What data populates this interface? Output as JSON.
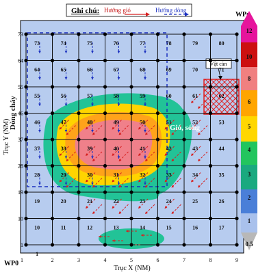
{
  "legend": {
    "title": "Ghi chú:",
    "wind_label": "Hướng gió",
    "current_label": "Hướng dòng",
    "wind_color": "#d62020",
    "current_color": "#1a2fbf"
  },
  "axes": {
    "x_label": "Trục X (NM)",
    "y_label": "Trục Y (NM)",
    "x_ticks": [
      "1",
      "2",
      "3",
      "4",
      "5",
      "6",
      "7",
      "8",
      "9"
    ],
    "y_ticks": [
      "1",
      "10",
      "19",
      "28",
      "37",
      "46",
      "55",
      "64",
      "73"
    ],
    "origin_label": "WP0"
  },
  "grid": {
    "rows": [
      [
        "73",
        "74",
        "75",
        "76",
        "77",
        "78",
        "79",
        "80",
        "81"
      ],
      [
        "64",
        "65",
        "66",
        "67",
        "68",
        "69",
        "70",
        "71",
        "72"
      ],
      [
        "55",
        "56",
        "57",
        "58",
        "59",
        "60",
        "61",
        "62",
        "63"
      ],
      [
        "46",
        "47",
        "48",
        "49",
        "50",
        "51",
        "52",
        "53",
        "54"
      ],
      [
        "37",
        "38",
        "39",
        "40",
        "41",
        "42",
        "43",
        "44",
        "45"
      ],
      [
        "28",
        "29",
        "30",
        "31",
        "32",
        "33",
        "34",
        "35",
        "36"
      ],
      [
        "19",
        "20",
        "21",
        "22",
        "23",
        "24",
        "25",
        "26",
        "27"
      ],
      [
        "10",
        "11",
        "12",
        "13",
        "14",
        "15",
        "16",
        "17",
        "18"
      ],
      [
        "1",
        "",
        "",
        "",
        "",
        "",
        "",
        "",
        ""
      ]
    ]
  },
  "annotations": {
    "current_region": "Dòng chảy",
    "wave_region": "Gió, sóng",
    "obstacle": "Vật cản",
    "wp_end": "WPg"
  },
  "colorbar": {
    "labels": [
      "12",
      "10",
      "8",
      "6",
      "5",
      "4",
      "3",
      "2",
      "1",
      "0.5"
    ],
    "colors": [
      "#e6159c",
      "#cc1010",
      "#f08080",
      "#ffa500",
      "#ffd700",
      "#22c55e",
      "#1aa97f",
      "#4a7fd8",
      "#a9c1ec",
      "#b8b8b8"
    ]
  },
  "colors": {
    "background": "#b7ccef",
    "grid_line": "#111111",
    "contour_low": "#22c397",
    "contour_mid": "#ffd400",
    "contour_orange": "#ffa31a",
    "contour_high": "#f0808a",
    "contour_south": "#22c397"
  }
}
